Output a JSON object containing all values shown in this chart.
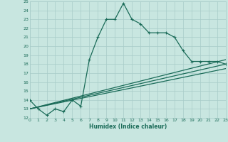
{
  "xlabel": "Humidex (Indice chaleur)",
  "bg_color": "#c8e6e0",
  "line_color": "#1a6b58",
  "grid_color": "#a8ccc8",
  "xlim": [
    0,
    23
  ],
  "ylim": [
    12,
    25
  ],
  "xticks": [
    0,
    1,
    2,
    3,
    4,
    5,
    6,
    7,
    8,
    9,
    10,
    11,
    12,
    13,
    14,
    15,
    16,
    17,
    18,
    19,
    20,
    21,
    22,
    23
  ],
  "yticks": [
    12,
    13,
    14,
    15,
    16,
    17,
    18,
    19,
    20,
    21,
    22,
    23,
    24,
    25
  ],
  "line1_x": [
    0,
    1,
    2,
    3,
    4,
    5,
    6,
    7,
    8,
    9,
    10,
    11,
    12,
    13,
    14,
    15,
    16,
    17,
    18,
    19,
    20,
    21,
    22,
    23
  ],
  "line1_y": [
    14.0,
    13.0,
    12.3,
    13.0,
    12.7,
    14.0,
    13.3,
    18.5,
    21.0,
    23.0,
    23.0,
    24.8,
    23.0,
    22.5,
    21.5,
    21.5,
    21.5,
    21.0,
    19.5,
    18.3,
    18.3,
    18.3,
    18.3,
    18.0
  ],
  "line2_x": [
    0,
    23
  ],
  "line2_y": [
    13.0,
    17.5
  ],
  "line3_x": [
    0,
    23
  ],
  "line3_y": [
    13.0,
    18.0
  ],
  "line4_x": [
    0,
    23
  ],
  "line4_y": [
    13.0,
    18.5
  ],
  "markersize": 3.5,
  "linewidth": 0.9
}
